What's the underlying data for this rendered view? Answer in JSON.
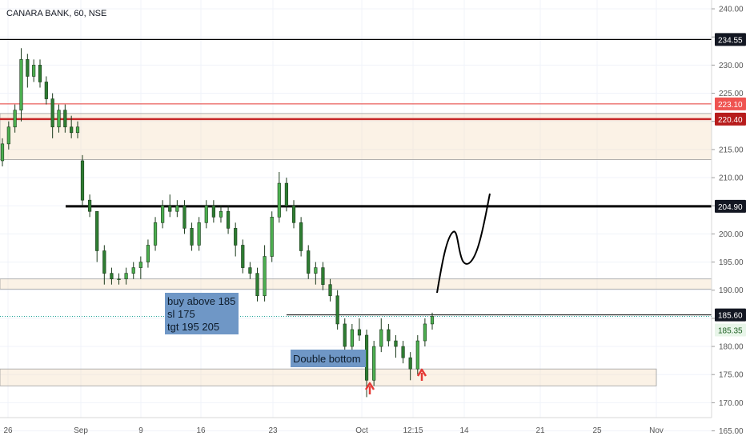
{
  "header": {
    "symbol_title": "CANARA BANK, 60, NSE"
  },
  "chart_data": {
    "type": "candlestick",
    "title": "CANARA BANK, 60, NSE",
    "ylim": [
      164.5,
      241
    ],
    "grid": true,
    "y_ticks": [
      "240.00",
      "235.00",
      "230.00",
      "225.00",
      "220.00",
      "215.00",
      "210.00",
      "205.00",
      "200.00",
      "195.00",
      "190.00",
      "185.00",
      "180.00",
      "175.00",
      "170.00",
      "165.00"
    ],
    "x_ticks": [
      "26",
      "Sep",
      "9",
      "16",
      "23",
      "Oct",
      "12:15",
      "14",
      "21",
      "25",
      "Nov"
    ],
    "price_badges": [
      {
        "label": "234.55",
        "value": 234.55,
        "style": "black"
      },
      {
        "label": "223.10",
        "value": 223.1,
        "style": "red"
      },
      {
        "label": "220.40",
        "value": 220.4,
        "style": "darkred"
      },
      {
        "label": "204.90",
        "value": 204.9,
        "style": "black"
      },
      {
        "label": "185.60",
        "value": 185.6,
        "style": "black"
      },
      {
        "label": "185.35",
        "value": 185.35,
        "style": "green"
      }
    ],
    "horizontal_lines": [
      {
        "value": 234.55,
        "color": "#000000",
        "width": 1.2,
        "from": "left"
      },
      {
        "value": 223.1,
        "color": "#e53935",
        "width": 1,
        "from": "left"
      },
      {
        "value": 220.4,
        "color": "#c62828",
        "width": 2.5,
        "from": "left"
      },
      {
        "value": 204.9,
        "color": "#000000",
        "width": 3,
        "from": "mid"
      },
      {
        "value": 185.6,
        "color": "#000000",
        "width": 1,
        "from": "mid2"
      },
      {
        "value": 185.35,
        "color": "#26a69a",
        "width": 1,
        "from": "left",
        "dotted": true
      }
    ],
    "zones": [
      {
        "top": 221.4,
        "bottom": 213.2,
        "label": "resistance-zone"
      },
      {
        "top": 192.0,
        "bottom": 190.2,
        "label": "mid-zone"
      },
      {
        "top": 176.0,
        "bottom": 173.0,
        "label": "support-zone"
      }
    ],
    "series": [
      {
        "values": [
          [
            213,
            217,
            212,
            216
          ],
          [
            216,
            220,
            215,
            219
          ],
          [
            219,
            223,
            218,
            222
          ],
          [
            222,
            233,
            220,
            231
          ],
          [
            231,
            232,
            226,
            228
          ],
          [
            228,
            231,
            227,
            230
          ],
          [
            230,
            231,
            226,
            227
          ],
          [
            227,
            228,
            223,
            224
          ],
          [
            224,
            225,
            217,
            219
          ],
          [
            219,
            223,
            218,
            222
          ],
          [
            222,
            223,
            218,
            219
          ],
          [
            219,
            221,
            217,
            218
          ],
          [
            218,
            220,
            217,
            219
          ]
        ]
      },
      {
        "values": [
          [
            213,
            214,
            205,
            206
          ],
          [
            206,
            207,
            203,
            204
          ],
          [
            204,
            204,
            195,
            197
          ],
          [
            197,
            198,
            191,
            193
          ],
          [
            193,
            194,
            191,
            192
          ],
          [
            192,
            193,
            191,
            192
          ],
          [
            192,
            194,
            191,
            193
          ],
          [
            193,
            195,
            192,
            194
          ],
          [
            194,
            196,
            192,
            195
          ],
          [
            195,
            199,
            194,
            198
          ],
          [
            198,
            203,
            197,
            202
          ],
          [
            202,
            206,
            201,
            205
          ],
          [
            205,
            207,
            203,
            204
          ],
          [
            204,
            206,
            203,
            205
          ],
          [
            205,
            206,
            200,
            201
          ],
          [
            201,
            202,
            197,
            198
          ],
          [
            198,
            203,
            197,
            202
          ],
          [
            202,
            206,
            201,
            205
          ],
          [
            205,
            206,
            202,
            203
          ],
          [
            203,
            205,
            202,
            204
          ],
          [
            204,
            205,
            200,
            201
          ],
          [
            201,
            202,
            196,
            198
          ],
          [
            198,
            199,
            193,
            194
          ],
          [
            194,
            195,
            192,
            193
          ],
          [
            193,
            194,
            188,
            189
          ],
          [
            189,
            198,
            188,
            196
          ],
          [
            196,
            204,
            195,
            203
          ],
          [
            203,
            211,
            202,
            209
          ],
          [
            209,
            210,
            204,
            205
          ],
          [
            205,
            206,
            201,
            202
          ],
          [
            202,
            203,
            196,
            197
          ],
          [
            197,
            198,
            192,
            193
          ],
          [
            193,
            195,
            191,
            194
          ],
          [
            194,
            195,
            190,
            191
          ],
          [
            191,
            192,
            188,
            189
          ],
          [
            189,
            190,
            183,
            184
          ],
          [
            184,
            185,
            179,
            180
          ],
          [
            180,
            184,
            179,
            183
          ],
          [
            183,
            185,
            181,
            182
          ],
          [
            182,
            183,
            171,
            174
          ],
          [
            174,
            181,
            173,
            180
          ],
          [
            180,
            185,
            179,
            183
          ],
          [
            183,
            184,
            180,
            181
          ],
          [
            181,
            182,
            178,
            180
          ],
          [
            180,
            181,
            177,
            178
          ],
          [
            178,
            179,
            174,
            176
          ],
          [
            176,
            182,
            175,
            181
          ],
          [
            181,
            185,
            180,
            184
          ],
          [
            184,
            186,
            183,
            185.35
          ]
        ]
      }
    ],
    "annotations": [
      {
        "text_lines": [
          "buy above 185",
          "sl 175",
          "tgt 195 205"
        ]
      },
      {
        "text": "Double bottom"
      },
      {
        "type": "arrow_up",
        "color": "#e53935",
        "count": 2
      }
    ],
    "projection": "hand-drawn path upward toward 204.90"
  }
}
